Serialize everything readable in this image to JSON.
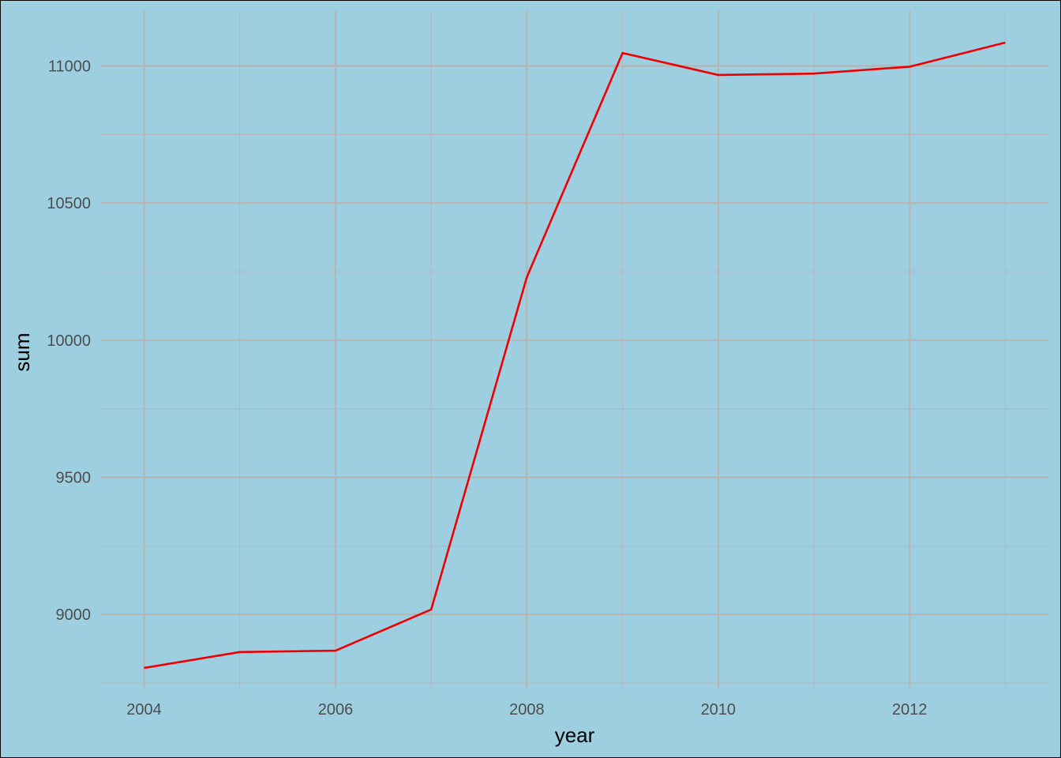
{
  "colors": {
    "background": "#9ecfe0",
    "border": "#000000",
    "grid_major": "#b5b5b5",
    "grid_minor": "#b3b7bb",
    "line": "#ee0000",
    "tick_text": "#4d4d4d",
    "axis_title_text": "#000000"
  },
  "chart_data": {
    "type": "line",
    "title": "",
    "xlabel": "year",
    "ylabel": "sum",
    "xlim": [
      2003.55,
      2013.45
    ],
    "ylim": [
      8730,
      11200
    ],
    "x_ticks": [
      2004,
      2006,
      2008,
      2010,
      2012
    ],
    "x_tick_labels": [
      "2004",
      "2006",
      "2008",
      "2010",
      "2012"
    ],
    "x_minor_ticks": [
      2005,
      2007,
      2009,
      2011,
      2013
    ],
    "y_ticks": [
      9000,
      9500,
      10000,
      10500,
      11000
    ],
    "y_tick_labels": [
      "9000",
      "9500",
      "10000",
      "10500",
      "11000"
    ],
    "y_minor_ticks": [
      8750,
      9250,
      9750,
      10250,
      10750
    ],
    "grid": true,
    "legend": "none",
    "series": [
      {
        "x": [
          2004,
          2005,
          2006,
          2007,
          2008,
          2009,
          2010,
          2011,
          2012,
          2013
        ],
        "y": [
          8805,
          8863,
          8868,
          9018,
          10230,
          11047,
          10967,
          10972,
          10997,
          11085
        ]
      }
    ]
  }
}
